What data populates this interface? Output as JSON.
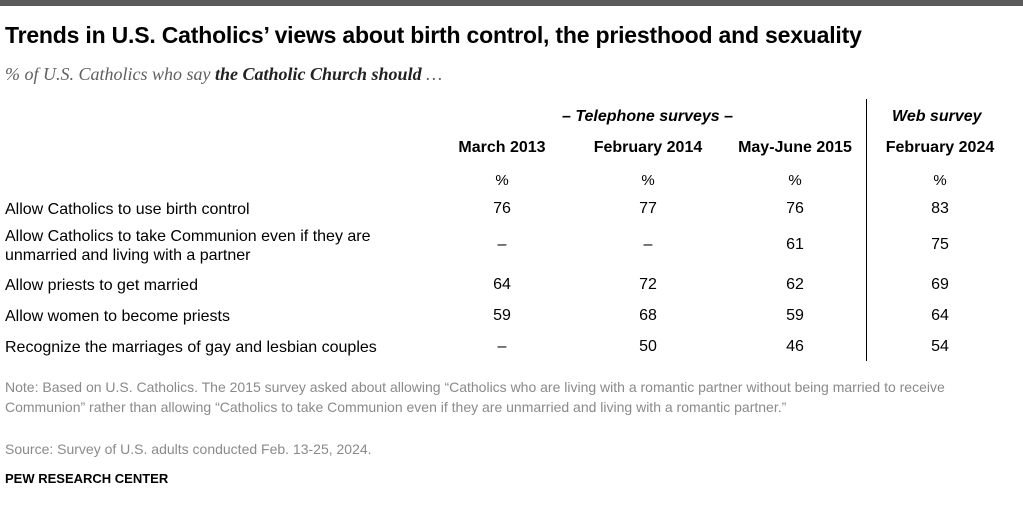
{
  "title": "Trends in U.S. Catholics’ views about birth control, the priesthood and sexuality",
  "subtitle_prefix": "% of U.S. Catholics who say",
  "subtitle_bold": "the Catholic Church should",
  "subtitle_suffix": "…",
  "groups": {
    "telephone": "– Telephone surveys –",
    "web": "Web survey"
  },
  "columns": [
    "March 2013",
    "February 2014",
    "May-June 2015",
    "February 2024"
  ],
  "unit": "%",
  "chart_data": {
    "type": "table",
    "title": "Trends in U.S. Catholics’ views about birth control, the priesthood and sexuality",
    "columns": [
      "March 2013",
      "February 2014",
      "May-June 2015",
      "February 2024"
    ],
    "rows": [
      {
        "label": "Allow Catholics to use birth control",
        "values": [
          "76",
          "77",
          "76",
          "83"
        ]
      },
      {
        "label": "Allow Catholics to take Communion even if they are unmarried and living with a partner",
        "values": [
          "–",
          "–",
          "61",
          "75"
        ]
      },
      {
        "label": "Allow priests to get married",
        "values": [
          "64",
          "72",
          "62",
          "69"
        ]
      },
      {
        "label": "Allow women to become priests",
        "values": [
          "59",
          "68",
          "59",
          "64"
        ]
      },
      {
        "label": "Recognize the marriages of gay and lesbian couples",
        "values": [
          "–",
          "50",
          "46",
          "54"
        ]
      }
    ]
  },
  "note": "Note: Based on U.S. Catholics. The 2015 survey asked about allowing “Catholics who are living with a romantic partner without being married to receive Communion” rather than allowing “Catholics to take Communion even if they are unmarried and living with a romantic partner.”",
  "source": "Source: Survey of U.S. adults conducted Feb. 13-25, 2024.",
  "brand": "PEW RESEARCH CENTER"
}
